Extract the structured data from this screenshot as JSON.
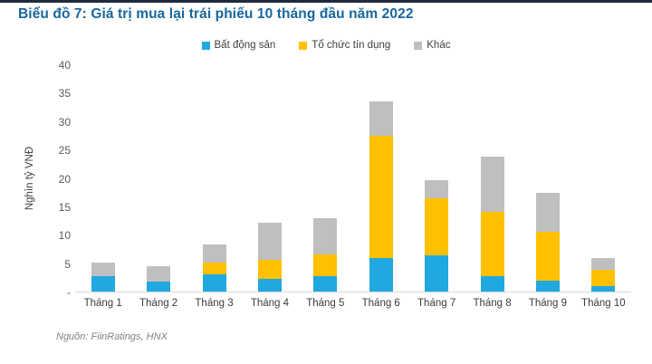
{
  "page": {
    "background": "#ffffff",
    "top_border_color": "#1e2b3c"
  },
  "title": {
    "text": "Biểu đồ 7: Giá trị mua lại trái phiếu 10 tháng đầu năm 2022",
    "color": "#17679e"
  },
  "source": {
    "text": "Nguồn: FiinRatings, HNX"
  },
  "y_axis": {
    "title": "Nghìn tỷ VNĐ",
    "ticks": [
      "40",
      "35",
      "30",
      "25",
      "20",
      "15",
      "10",
      "5",
      "-"
    ],
    "max": 40
  },
  "chart_data": {
    "type": "bar",
    "stacked": true,
    "title": "Biểu đồ 7: Giá trị mua lại trái phiếu 10 tháng đầu năm 2022",
    "xlabel": "",
    "ylabel": "Nghìn tỷ VNĐ",
    "ylim": [
      0,
      40
    ],
    "grid": false,
    "legend_position": "top",
    "categories": [
      "Tháng 1",
      "Tháng 2",
      "Tháng 3",
      "Tháng 4",
      "Tháng 5",
      "Tháng 6",
      "Tháng 7",
      "Tháng 8",
      "Tháng 9",
      "Tháng 10"
    ],
    "series": [
      {
        "name": "Bất động sản",
        "color": "#20a8e0",
        "values": [
          2.7,
          1.7,
          3.1,
          2.2,
          2.7,
          6.0,
          6.4,
          2.7,
          1.9,
          0.9
        ]
      },
      {
        "name": "Tổ chức tín dụng",
        "color": "#ffc000",
        "values": [
          0,
          0,
          2.1,
          3.4,
          3.9,
          21.6,
          10.1,
          11.4,
          8.7,
          3.0
        ]
      },
      {
        "name": "Khác",
        "color": "#bfbfbf",
        "values": [
          2.5,
          2.8,
          3.2,
          6.5,
          6.3,
          6.0,
          3.2,
          9.7,
          6.8,
          2.0
        ]
      }
    ],
    "totals": [
      5.2,
      4.5,
      8.4,
      12.1,
      12.9,
      33.6,
      19.7,
      23.8,
      17.4,
      5.9
    ]
  }
}
